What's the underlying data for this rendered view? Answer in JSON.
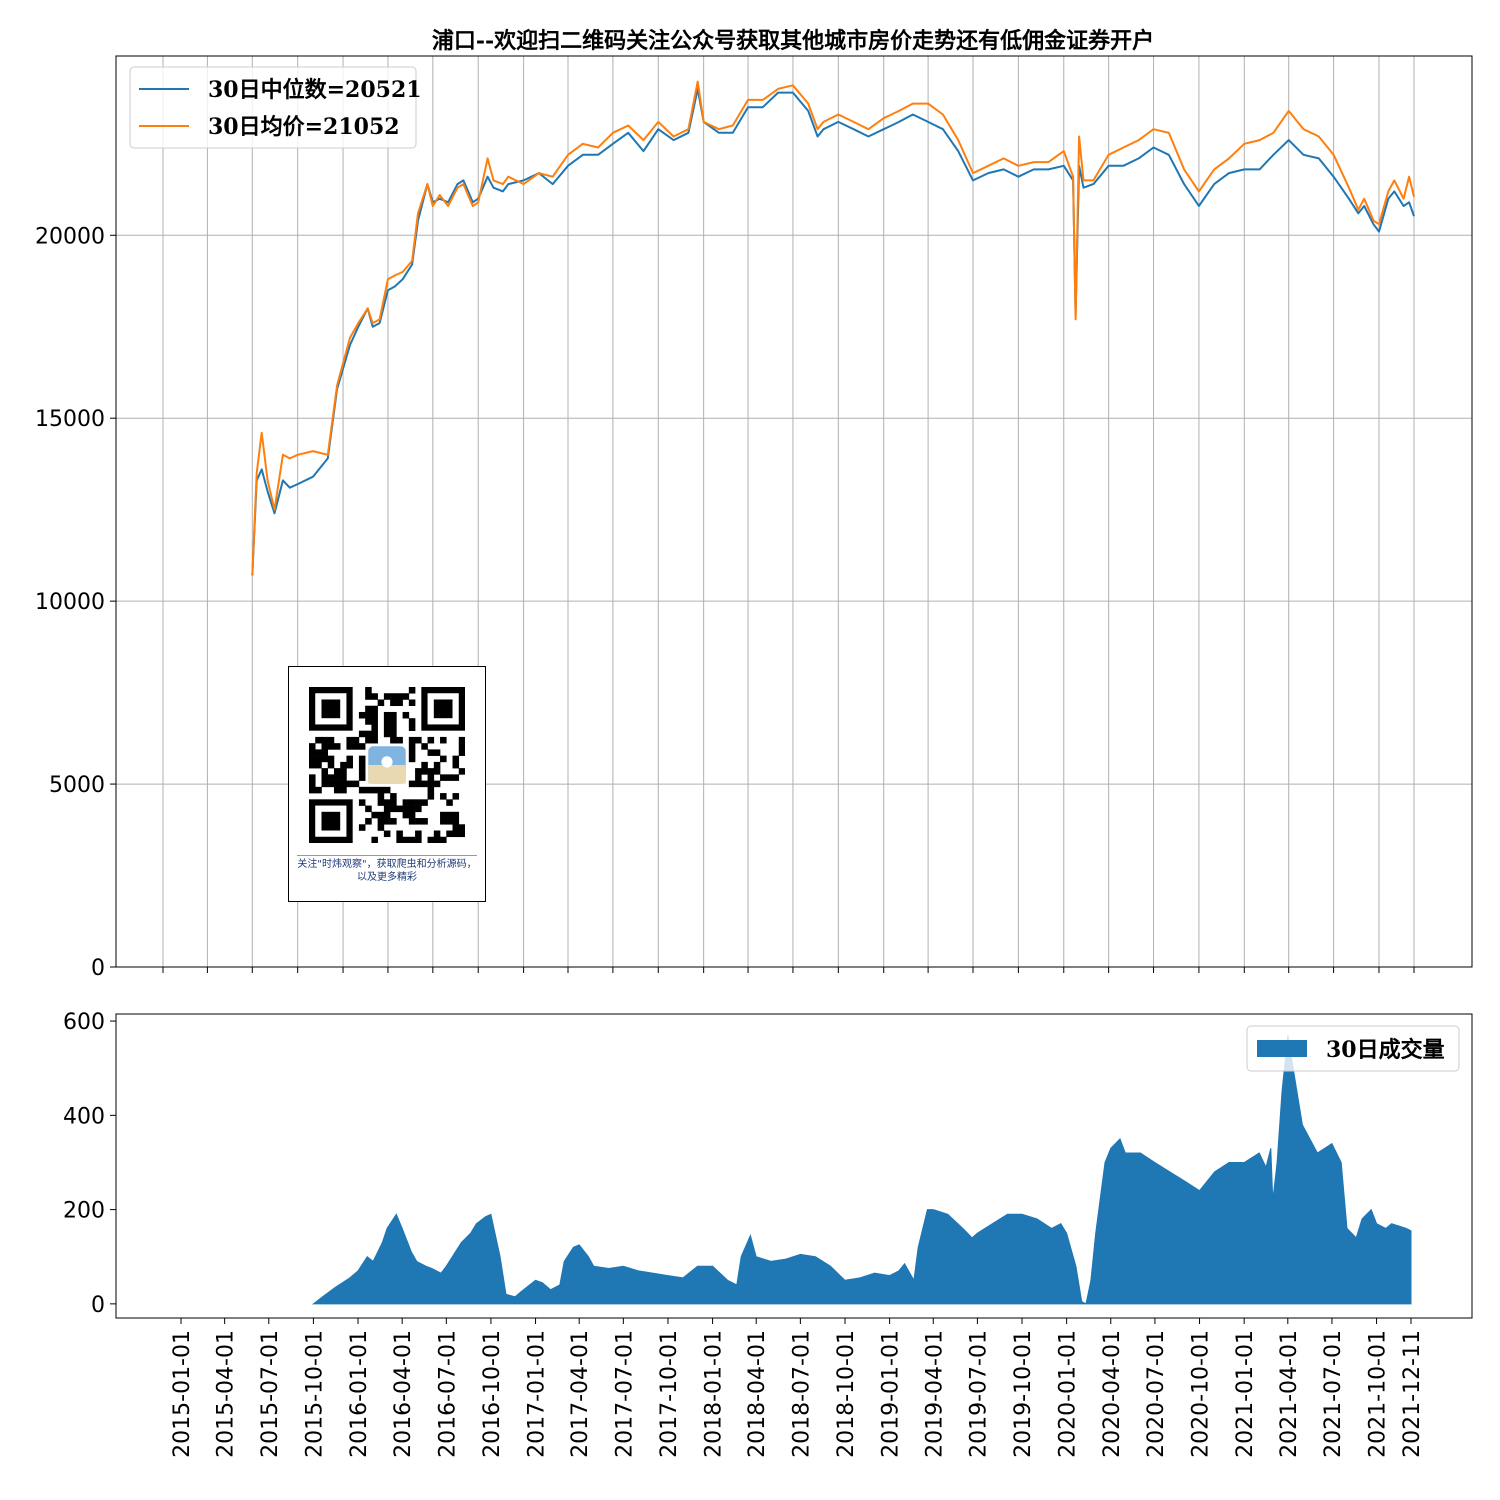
{
  "title": "浦口--欢迎扫二维码关注公众号获取其他城市房价走势还有低佣金证券开户",
  "colors": {
    "median": "#1f77b4",
    "mean": "#ff7f0e",
    "volume": "#1f77b4",
    "grid": "#b0b0b0"
  },
  "qr": {
    "caption": "关注\"时炜观察\"，获取爬虫和分析源码，以及更多精彩",
    "icon": "qr-code-icon"
  },
  "chart_data": [
    {
      "type": "line",
      "legend": "top-left",
      "grid": true,
      "ylim": [
        0,
        24900
      ],
      "yticks": [
        "0",
        "5000",
        "10000",
        "15000",
        "20000"
      ],
      "series": [
        {
          "name": "30日中位数=20521",
          "x": [
            "2015-07-01",
            "2015-07-10",
            "2015-07-20",
            "2015-08-01",
            "2015-08-15",
            "2015-09-01",
            "2015-09-15",
            "2015-10-01",
            "2015-11-01",
            "2015-12-01",
            "2015-12-20",
            "2016-01-15",
            "2016-02-01",
            "2016-02-20",
            "2016-03-01",
            "2016-03-15",
            "2016-04-01",
            "2016-04-15",
            "2016-05-01",
            "2016-05-20",
            "2016-06-01",
            "2016-06-20",
            "2016-07-01",
            "2016-07-15",
            "2016-08-01",
            "2016-08-20",
            "2016-09-01",
            "2016-09-20",
            "2016-10-01",
            "2016-10-20",
            "2016-11-01",
            "2016-11-20",
            "2016-12-01",
            "2017-01-01",
            "2017-02-01",
            "2017-03-01",
            "2017-04-01",
            "2017-05-01",
            "2017-06-01",
            "2017-07-01",
            "2017-08-01",
            "2017-09-01",
            "2017-10-01",
            "2017-11-01",
            "2017-12-01",
            "2017-12-20",
            "2018-01-01",
            "2018-02-01",
            "2018-03-01",
            "2018-04-01",
            "2018-05-01",
            "2018-06-01",
            "2018-07-01",
            "2018-08-01",
            "2018-08-20",
            "2018-09-01",
            "2018-10-01",
            "2018-11-01",
            "2018-12-01",
            "2019-01-01",
            "2019-02-01",
            "2019-03-01",
            "2019-04-01",
            "2019-05-01",
            "2019-06-01",
            "2019-07-01",
            "2019-08-01",
            "2019-09-01",
            "2019-10-01",
            "2019-11-01",
            "2019-12-01",
            "2020-01-01",
            "2020-01-20",
            "2020-01-25",
            "2020-02-01",
            "2020-02-10",
            "2020-03-01",
            "2020-04-01",
            "2020-05-01",
            "2020-06-01",
            "2020-07-01",
            "2020-08-01",
            "2020-09-01",
            "2020-10-01",
            "2020-11-01",
            "2020-12-01",
            "2021-01-01",
            "2021-02-01",
            "2021-03-01",
            "2021-04-01",
            "2021-05-01",
            "2021-06-01",
            "2021-07-01",
            "2021-08-01",
            "2021-08-20",
            "2021-09-01",
            "2021-09-20",
            "2021-10-01",
            "2021-10-20",
            "2021-11-01",
            "2021-11-20",
            "2021-12-01",
            "2021-12-11"
          ],
          "values": [
            10700,
            13300,
            13600,
            13000,
            12400,
            13300,
            13100,
            13200,
            13400,
            13900,
            15800,
            17000,
            17500,
            18000,
            17500,
            17600,
            18500,
            18600,
            18800,
            19200,
            20400,
            21400,
            20900,
            21000,
            20900,
            21400,
            21500,
            20900,
            21000,
            21600,
            21300,
            21200,
            21400,
            21500,
            21700,
            21400,
            21900,
            22200,
            22200,
            22500,
            22800,
            22300,
            22900,
            22600,
            22800,
            24000,
            23100,
            22800,
            22800,
            23500,
            23500,
            23900,
            23900,
            23400,
            22700,
            22900,
            23100,
            22900,
            22700,
            22900,
            23100,
            23300,
            23100,
            22900,
            22300,
            21500,
            21700,
            21800,
            21600,
            21800,
            21800,
            21900,
            21500,
            17800,
            21900,
            21300,
            21400,
            21900,
            21900,
            22100,
            22400,
            22200,
            21400,
            20800,
            21400,
            21700,
            21800,
            21800,
            22200,
            22600,
            22200,
            22100,
            21600,
            21000,
            20600,
            20800,
            20300,
            20100,
            21000,
            21200,
            20800,
            20900,
            20521
          ]
        },
        {
          "name": "30日均价=21052",
          "x": [
            "2015-07-01",
            "2015-07-10",
            "2015-07-20",
            "2015-08-01",
            "2015-08-15",
            "2015-09-01",
            "2015-09-15",
            "2015-10-01",
            "2015-11-01",
            "2015-12-01",
            "2015-12-20",
            "2016-01-15",
            "2016-02-01",
            "2016-02-20",
            "2016-03-01",
            "2016-03-15",
            "2016-04-01",
            "2016-04-15",
            "2016-05-01",
            "2016-05-20",
            "2016-06-01",
            "2016-06-20",
            "2016-07-01",
            "2016-07-15",
            "2016-08-01",
            "2016-08-20",
            "2016-09-01",
            "2016-09-20",
            "2016-10-01",
            "2016-10-20",
            "2016-11-01",
            "2016-11-20",
            "2016-12-01",
            "2017-01-01",
            "2017-02-01",
            "2017-03-01",
            "2017-04-01",
            "2017-05-01",
            "2017-06-01",
            "2017-07-01",
            "2017-08-01",
            "2017-09-01",
            "2017-10-01",
            "2017-11-01",
            "2017-12-01",
            "2017-12-20",
            "2018-01-01",
            "2018-02-01",
            "2018-03-01",
            "2018-04-01",
            "2018-05-01",
            "2018-06-01",
            "2018-07-01",
            "2018-08-01",
            "2018-08-20",
            "2018-09-01",
            "2018-10-01",
            "2018-11-01",
            "2018-12-01",
            "2019-01-01",
            "2019-02-01",
            "2019-03-01",
            "2019-04-01",
            "2019-05-01",
            "2019-06-01",
            "2019-07-01",
            "2019-08-01",
            "2019-09-01",
            "2019-10-01",
            "2019-11-01",
            "2019-12-01",
            "2020-01-01",
            "2020-01-20",
            "2020-01-25",
            "2020-02-01",
            "2020-02-10",
            "2020-03-01",
            "2020-04-01",
            "2020-05-01",
            "2020-06-01",
            "2020-07-01",
            "2020-08-01",
            "2020-09-01",
            "2020-10-01",
            "2020-11-01",
            "2020-12-01",
            "2021-01-01",
            "2021-02-01",
            "2021-03-01",
            "2021-04-01",
            "2021-05-01",
            "2021-06-01",
            "2021-07-01",
            "2021-08-01",
            "2021-08-20",
            "2021-09-01",
            "2021-09-20",
            "2021-10-01",
            "2021-10-20",
            "2021-11-01",
            "2021-11-20",
            "2021-12-01",
            "2021-12-11"
          ],
          "values": [
            10700,
            13500,
            14600,
            13300,
            12500,
            14000,
            13900,
            14000,
            14100,
            14000,
            15900,
            17200,
            17600,
            18000,
            17600,
            17700,
            18800,
            18900,
            19000,
            19300,
            20600,
            21400,
            20800,
            21100,
            20800,
            21300,
            21400,
            20800,
            20900,
            22100,
            21500,
            21400,
            21600,
            21400,
            21700,
            21600,
            22200,
            22500,
            22400,
            22800,
            23000,
            22600,
            23100,
            22700,
            22900,
            24200,
            23100,
            22900,
            23000,
            23700,
            23700,
            24000,
            24100,
            23600,
            22900,
            23100,
            23300,
            23100,
            22900,
            23200,
            23400,
            23600,
            23600,
            23300,
            22600,
            21700,
            21900,
            22100,
            21900,
            22000,
            22000,
            22300,
            21600,
            17700,
            22700,
            21500,
            21500,
            22200,
            22400,
            22600,
            22900,
            22800,
            21800,
            21200,
            21800,
            22100,
            22500,
            22600,
            22800,
            23400,
            22900,
            22700,
            22200,
            21300,
            20700,
            21000,
            20400,
            20300,
            21200,
            21500,
            21000,
            21600,
            21052
          ]
        }
      ]
    },
    {
      "type": "area",
      "legend": "top-right",
      "grid": false,
      "ylim": [
        -30,
        615
      ],
      "yticks": [
        "0",
        "200",
        "400",
        "600"
      ],
      "xticks": [
        "2015-01-01",
        "2015-04-01",
        "2015-07-01",
        "2015-10-01",
        "2016-01-01",
        "2016-04-01",
        "2016-07-01",
        "2016-10-01",
        "2017-01-01",
        "2017-04-01",
        "2017-07-01",
        "2017-10-01",
        "2018-01-01",
        "2018-04-01",
        "2018-07-01",
        "2018-10-01",
        "2019-01-01",
        "2019-04-01",
        "2019-07-01",
        "2019-10-01",
        "2020-01-01",
        "2020-04-01",
        "2020-07-01",
        "2020-10-01",
        "2021-01-01",
        "2021-04-01",
        "2021-07-01",
        "2021-10-01",
        "2021-12-11"
      ],
      "series": [
        {
          "name": "30日成交量",
          "x": [
            "2015-10-01",
            "2015-10-20",
            "2015-11-15",
            "2015-12-15",
            "2016-01-01",
            "2016-01-20",
            "2016-02-01",
            "2016-02-20",
            "2016-03-01",
            "2016-03-20",
            "2016-04-01",
            "2016-04-20",
            "2016-05-01",
            "2016-05-20",
            "2016-06-01",
            "2016-06-20",
            "2016-07-01",
            "2016-08-01",
            "2016-08-20",
            "2016-09-01",
            "2016-09-20",
            "2016-10-01",
            "2016-10-20",
            "2016-11-01",
            "2016-11-20",
            "2016-12-01",
            "2017-01-01",
            "2017-01-15",
            "2017-02-01",
            "2017-02-20",
            "2017-03-01",
            "2017-03-20",
            "2017-04-01",
            "2017-04-20",
            "2017-05-01",
            "2017-06-01",
            "2017-07-01",
            "2017-08-01",
            "2017-09-01",
            "2017-10-01",
            "2017-11-01",
            "2017-12-01",
            "2018-01-01",
            "2018-02-01",
            "2018-02-20",
            "2018-03-01",
            "2018-03-20",
            "2018-04-01",
            "2018-05-01",
            "2018-06-01",
            "2018-07-01",
            "2018-08-01",
            "2018-09-01",
            "2018-10-01",
            "2018-11-01",
            "2018-12-01",
            "2019-01-01",
            "2019-01-20",
            "2019-02-01",
            "2019-02-20",
            "2019-03-01",
            "2019-03-20",
            "2019-04-01",
            "2019-05-01",
            "2019-06-01",
            "2019-06-20",
            "2019-07-01",
            "2019-08-01",
            "2019-09-01",
            "2019-10-01",
            "2019-11-01",
            "2019-12-01",
            "2019-12-20",
            "2020-01-01",
            "2020-01-20",
            "2020-02-01",
            "2020-02-10",
            "2020-02-20",
            "2020-03-01",
            "2020-03-20",
            "2020-04-01",
            "2020-04-20",
            "2020-05-01",
            "2020-06-01",
            "2020-07-01",
            "2020-08-01",
            "2020-09-01",
            "2020-10-01",
            "2020-11-01",
            "2020-12-01",
            "2021-01-01",
            "2021-02-01",
            "2021-02-15",
            "2021-02-25",
            "2021-03-01",
            "2021-03-10",
            "2021-03-20",
            "2021-04-01",
            "2021-04-20",
            "2021-05-01",
            "2021-06-01",
            "2021-07-01",
            "2021-07-20",
            "2021-08-01",
            "2021-08-20",
            "2021-09-01",
            "2021-09-20",
            "2021-10-01",
            "2021-10-20",
            "2021-11-01",
            "2021-12-01",
            "2021-12-11"
          ],
          "values": [
            0,
            15,
            35,
            55,
            70,
            100,
            90,
            130,
            160,
            190,
            160,
            110,
            90,
            80,
            75,
            65,
            80,
            130,
            150,
            170,
            185,
            190,
            100,
            20,
            15,
            25,
            50,
            45,
            30,
            40,
            90,
            120,
            125,
            100,
            80,
            75,
            80,
            70,
            65,
            60,
            55,
            80,
            80,
            50,
            40,
            100,
            145,
            100,
            90,
            95,
            105,
            100,
            80,
            50,
            55,
            65,
            60,
            70,
            85,
            50,
            120,
            200,
            200,
            190,
            160,
            140,
            150,
            170,
            190,
            190,
            180,
            160,
            170,
            150,
            80,
            5,
            0,
            50,
            150,
            300,
            330,
            350,
            320,
            320,
            300,
            280,
            260,
            240,
            280,
            300,
            300,
            320,
            290,
            330,
            220,
            300,
            450,
            570,
            450,
            380,
            320,
            340,
            300,
            160,
            140,
            180,
            200,
            170,
            160,
            170,
            160,
            155
          ]
        }
      ]
    }
  ]
}
